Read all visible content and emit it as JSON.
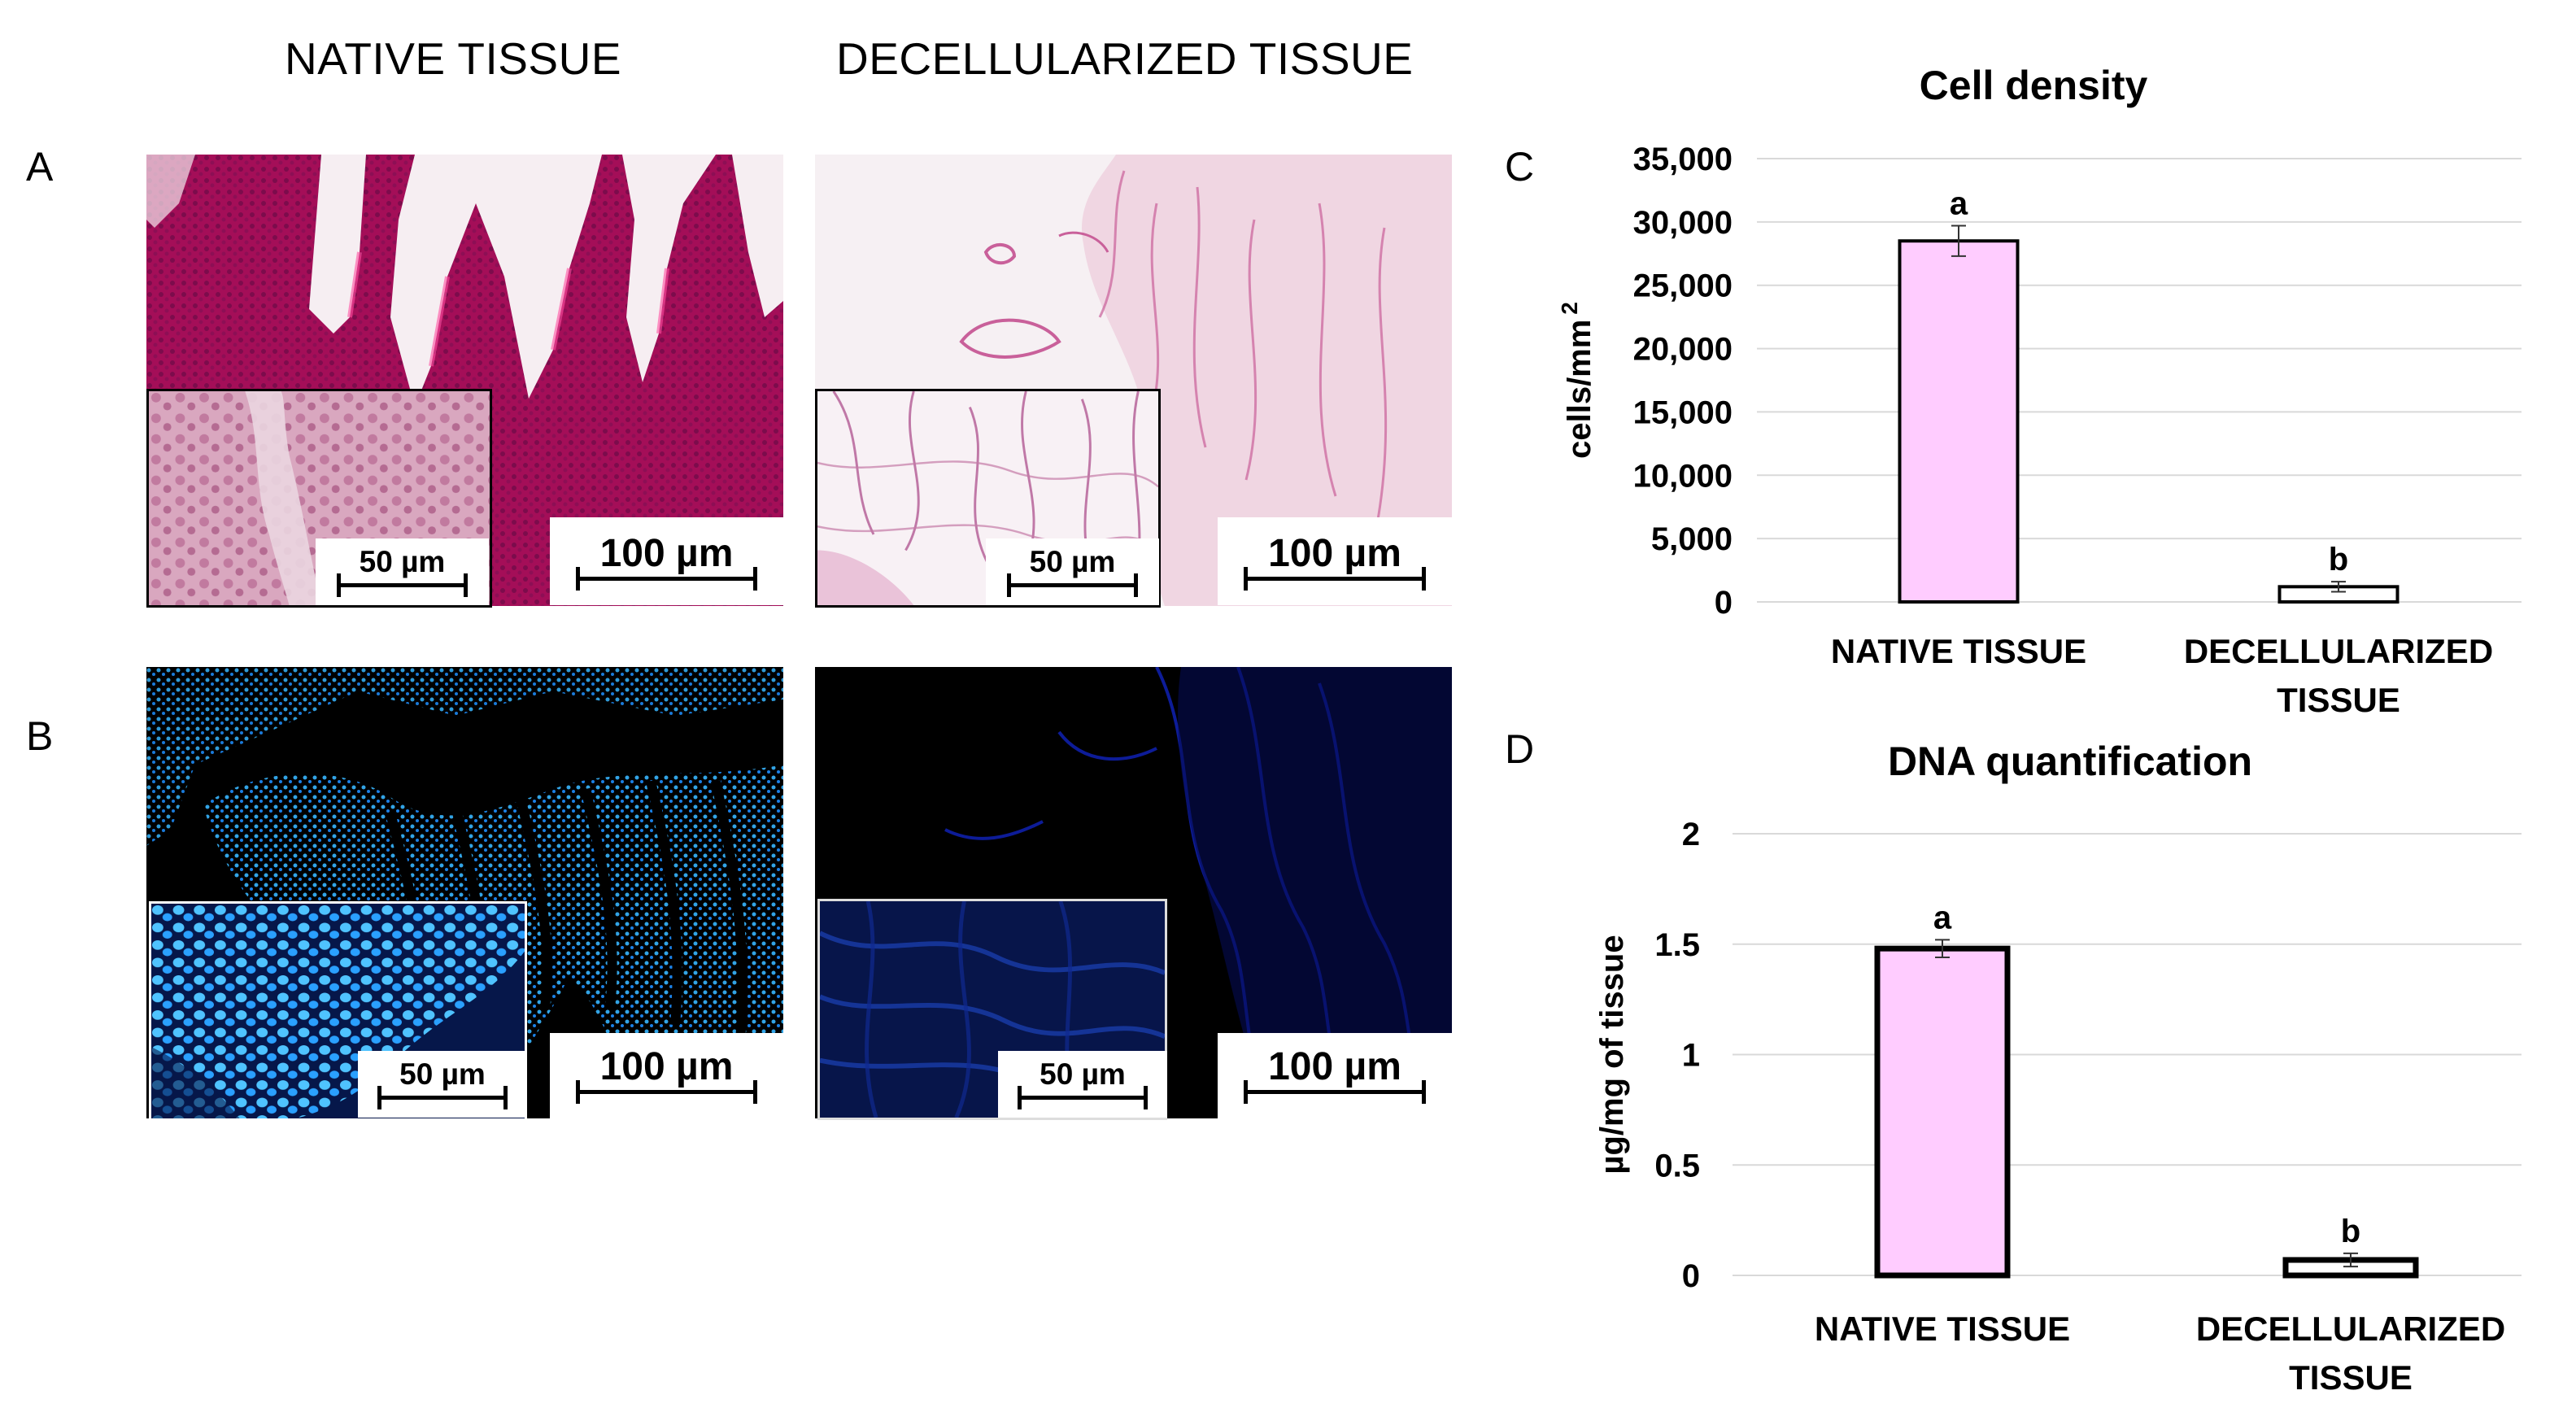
{
  "column_titles": [
    "NATIVE TISSUE",
    "DECELLULARIZED TISSUE"
  ],
  "panel_letters": [
    "A",
    "B",
    "C",
    "D"
  ],
  "scale_labels": {
    "main": "100 µm",
    "inset": "50 µm"
  },
  "colors": {
    "bar_native": "#FFCCFF",
    "bar_decell": "#FFFFFF",
    "he_stain": "#C2185B",
    "dapi": "#1E90FF",
    "grid": "#D9D9D9"
  },
  "chart_data": [
    {
      "type": "bar",
      "title": "Cell density",
      "ylabel": "cells/mm",
      "ylabel_sup": "2",
      "categories": [
        [
          "NATIVE TISSUE"
        ],
        [
          "DECELLULARIZED",
          "TISSUE"
        ]
      ],
      "values": [
        28500,
        1200
      ],
      "errors": [
        1200,
        400
      ],
      "letters": [
        "a",
        "b"
      ],
      "ylim": [
        0,
        35000
      ],
      "yticks": [
        0,
        5000,
        10000,
        15000,
        20000,
        25000,
        30000,
        35000
      ],
      "ytick_labels": [
        "0",
        "5,000",
        "10,000",
        "15,000",
        "20,000",
        "25,000",
        "30,000",
        "35,000"
      ],
      "grid": true
    },
    {
      "type": "bar",
      "title": "DNA quantification",
      "ylabel": "µg/mg of tissue",
      "ylabel_sup": "",
      "categories": [
        [
          "NATIVE TISSUE"
        ],
        [
          "DECELLULARIZED",
          "TISSUE"
        ]
      ],
      "values": [
        1.48,
        0.07
      ],
      "errors": [
        0.04,
        0.03
      ],
      "letters": [
        "a",
        "b"
      ],
      "ylim": [
        0,
        2
      ],
      "yticks": [
        0,
        0.5,
        1,
        1.5,
        2
      ],
      "ytick_labels": [
        "0",
        "0.5",
        "1",
        "1.5",
        "2"
      ],
      "grid": true
    }
  ]
}
